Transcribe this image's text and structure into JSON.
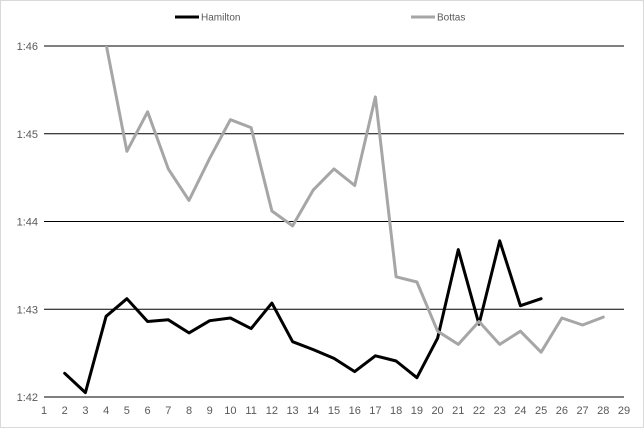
{
  "chart_data": {
    "type": "line",
    "title": "",
    "xlabel": "",
    "ylabel": "",
    "x_ticks": [
      1,
      2,
      3,
      4,
      5,
      6,
      7,
      8,
      9,
      10,
      11,
      12,
      13,
      14,
      15,
      16,
      17,
      18,
      19,
      20,
      21,
      22,
      23,
      24,
      25,
      26,
      27,
      28,
      29
    ],
    "xlim": [
      1,
      29
    ],
    "y_ticks": [
      "1:42",
      "1:43",
      "1:44",
      "1:45",
      "1:46"
    ],
    "ylim_seconds": [
      102,
      106
    ],
    "grid": "horizontal",
    "legend_position": "top",
    "series": [
      {
        "name": "Hamilton",
        "color": "#000000",
        "x": [
          2,
          3,
          4,
          5,
          6,
          7,
          8,
          9,
          10,
          11,
          12,
          13,
          14,
          15,
          16,
          17,
          18,
          19,
          20,
          21,
          22,
          23,
          24,
          25
        ],
        "y": [
          102.27,
          102.05,
          102.92,
          103.12,
          102.86,
          102.88,
          102.73,
          102.87,
          102.9,
          102.78,
          103.07,
          102.63,
          102.54,
          102.44,
          102.29,
          102.47,
          102.41,
          102.22,
          102.67,
          103.68,
          102.83,
          103.78,
          103.04,
          103.12
        ]
      },
      {
        "name": "Bottas",
        "color": "#a6a6a6",
        "x": [
          4,
          5,
          6,
          7,
          8,
          9,
          10,
          11,
          12,
          13,
          14,
          15,
          16,
          17,
          18,
          19,
          20,
          21,
          22,
          23,
          24,
          25,
          26,
          27,
          28
        ],
        "y": [
          106.02,
          104.8,
          105.25,
          104.6,
          104.24,
          104.72,
          105.16,
          105.07,
          104.12,
          103.95,
          104.36,
          104.6,
          104.41,
          105.42,
          103.37,
          103.31,
          102.75,
          102.6,
          102.86,
          102.6,
          102.75,
          102.51,
          102.9,
          102.82,
          102.91
        ]
      }
    ]
  }
}
